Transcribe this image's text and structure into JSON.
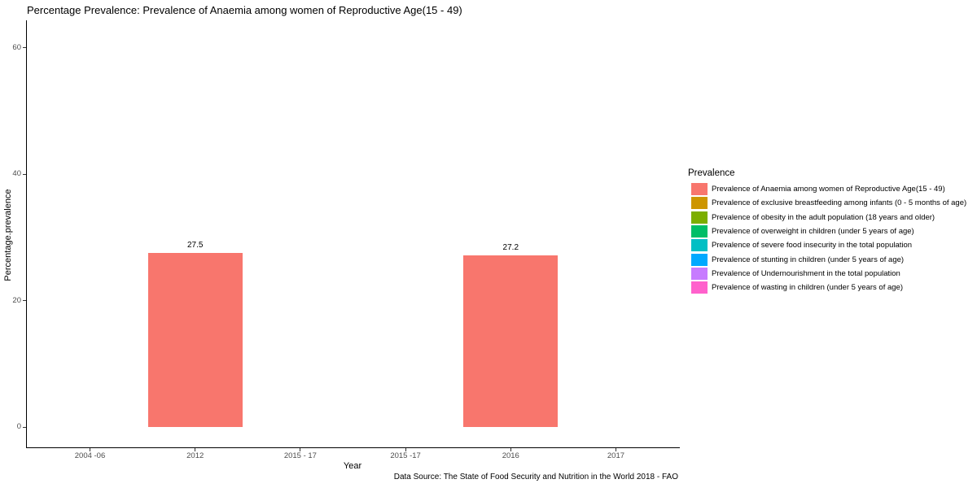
{
  "chart_data": {
    "type": "bar",
    "title": "Percentage Prevalence: Prevalence of Anaemia among women of Reproductive Age(15 - 49)",
    "xlabel": "Year",
    "ylabel": "Percentage.prevalence",
    "caption": "Data Source: The State of Food Security and Nutrition in the World 2018 - FAO",
    "categories": [
      "2004 -06",
      "2012",
      "2015 - 17",
      "2015 -17",
      "2016",
      "2017"
    ],
    "values": [
      null,
      27.5,
      null,
      null,
      27.2,
      null
    ],
    "bar_labels": [
      "",
      "27.5",
      "",
      "",
      "27.2",
      ""
    ],
    "bar_color": "#F8766D",
    "ylim": [
      0,
      60
    ],
    "yticks": [
      0,
      20,
      40,
      60
    ],
    "grid": "off",
    "legend": {
      "title": "Prevalence",
      "position": "right",
      "entries": [
        {
          "label": "Prevalence of Anaemia among women of Reproductive Age(15 - 49)",
          "color": "#F8766D"
        },
        {
          "label": "Prevalence of exclusive breastfeeding among infants (0 - 5 months of age)",
          "color": "#CD9600"
        },
        {
          "label": "Prevalence of obesity in the adult population (18 years and older)",
          "color": "#7CAE00"
        },
        {
          "label": "Prevalence of overweight in children (under 5 years of age)",
          "color": "#00BE67"
        },
        {
          "label": "Prevalence of severe food insecurity in the total population",
          "color": "#00BFC4"
        },
        {
          "label": "Prevalence of stunting in children (under 5 years of age)",
          "color": "#00A9FF"
        },
        {
          "label": "Prevalence of Undernourishment in the total population",
          "color": "#C77CFF"
        },
        {
          "label": "Prevalence of wasting in children (under 5 years of age)",
          "color": "#FF61CC"
        }
      ]
    }
  }
}
